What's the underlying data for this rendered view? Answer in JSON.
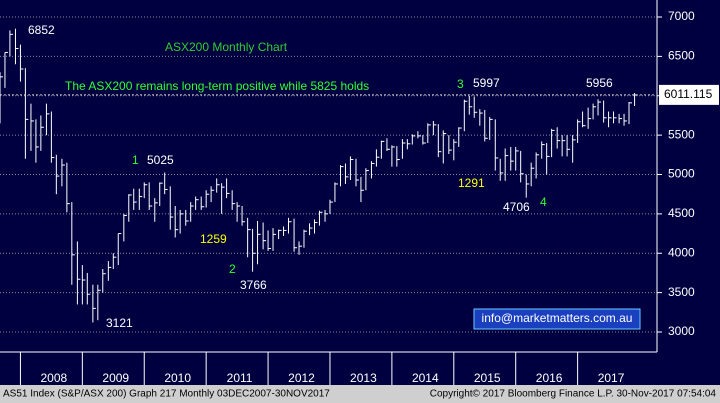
{
  "chart_data": {
    "type": "ohlc",
    "title": "ASX200 Monthly Chart",
    "subtitle": "The ASX200 remains long-term positive while 5825 holds",
    "x": [
      2007.54,
      2007.63,
      2007.71,
      2007.79,
      2007.88,
      2007.96,
      2008.04,
      2008.13,
      2008.21,
      2008.29,
      2008.38,
      2008.46,
      2008.54,
      2008.63,
      2008.71,
      2008.79,
      2008.88,
      2008.96,
      2009.04,
      2009.13,
      2009.21,
      2009.29,
      2009.38,
      2009.46,
      2009.54,
      2009.63,
      2009.71,
      2009.79,
      2009.88,
      2009.96,
      2010.04,
      2010.13,
      2010.21,
      2010.29,
      2010.38,
      2010.46,
      2010.54,
      2010.63,
      2010.71,
      2010.79,
      2010.88,
      2010.96,
      2011.04,
      2011.13,
      2011.21,
      2011.29,
      2011.38,
      2011.46,
      2011.54,
      2011.63,
      2011.71,
      2011.79,
      2011.88,
      2011.96,
      2012.04,
      2012.13,
      2012.21,
      2012.29,
      2012.38,
      2012.46,
      2012.54,
      2012.63,
      2012.71,
      2012.79,
      2012.88,
      2012.96,
      2013.04,
      2013.13,
      2013.21,
      2013.29,
      2013.38,
      2013.46,
      2013.54,
      2013.63,
      2013.71,
      2013.79,
      2013.88,
      2013.96,
      2014.04,
      2014.13,
      2014.21,
      2014.29,
      2014.38,
      2014.46,
      2014.54,
      2014.63,
      2014.71,
      2014.79,
      2014.88,
      2014.96,
      2015.04,
      2015.13,
      2015.21,
      2015.29,
      2015.38,
      2015.46,
      2015.54,
      2015.63,
      2015.71,
      2015.79,
      2015.88,
      2015.96,
      2016.04,
      2016.13,
      2016.21,
      2016.29,
      2016.38,
      2016.46,
      2016.54,
      2016.63,
      2016.71,
      2016.79,
      2016.88,
      2016.96,
      2017.04,
      2017.13,
      2017.21,
      2017.29,
      2017.38,
      2017.46,
      2017.54,
      2017.63,
      2017.71,
      2017.79,
      2017.88
    ],
    "high": [
      6350,
      6300,
      6550,
      6830,
      6852,
      6650,
      6350,
      5900,
      5700,
      5750,
      5900,
      5800,
      5250,
      5200,
      5150,
      4650,
      4150,
      3850,
      3750,
      3600,
      3600,
      3800,
      3900,
      4000,
      4250,
      4500,
      4750,
      4820,
      4820,
      4900,
      4900,
      4700,
      4900,
      5025,
      4850,
      4600,
      4550,
      4550,
      4650,
      4720,
      4720,
      4800,
      4850,
      4950,
      4890,
      4950,
      4800,
      4650,
      4600,
      4450,
      4310,
      4410,
      4390,
      4290,
      4320,
      4300,
      4340,
      4450,
      4440,
      4150,
      4300,
      4380,
      4430,
      4540,
      4550,
      4680,
      4900,
      5120,
      5140,
      5230,
      5200,
      4970,
      5080,
      5170,
      5320,
      5430,
      5460,
      5370,
      5360,
      5450,
      5450,
      5510,
      5550,
      5500,
      5650,
      5680,
      5640,
      5560,
      5500,
      5450,
      5600,
      5950,
      5997,
      5990,
      5830,
      5820,
      5730,
      5700,
      5200,
      5330,
      5350,
      5350,
      5300,
      5000,
      5150,
      5280,
      5420,
      5400,
      5580,
      5600,
      5500,
      5500,
      5500,
      5700,
      5800,
      5850,
      5900,
      5956,
      5940,
      5800,
      5800,
      5770,
      5770,
      5920,
      6035
    ],
    "low": [
      5950,
      5650,
      6100,
      6500,
      6400,
      6180,
      5200,
      5300,
      5150,
      5300,
      5500,
      5150,
      4750,
      4850,
      4520,
      3600,
      3350,
      3350,
      3350,
      3121,
      3150,
      3500,
      3650,
      3800,
      3850,
      4150,
      4400,
      4550,
      4550,
      4700,
      4550,
      4400,
      4600,
      4750,
      4300,
      4200,
      4250,
      4350,
      4400,
      4550,
      4550,
      4580,
      4650,
      4770,
      4500,
      4700,
      4550,
      4400,
      4350,
      3950,
      3766,
      3860,
      4050,
      4030,
      4030,
      4180,
      4220,
      4250,
      4020,
      3980,
      4070,
      4230,
      4250,
      4350,
      4400,
      4500,
      4650,
      4850,
      4880,
      4930,
      4850,
      4650,
      4800,
      4950,
      5100,
      5200,
      5300,
      5100,
      5100,
      5200,
      5320,
      5380,
      5460,
      5380,
      5400,
      5500,
      5220,
      5140,
      5260,
      5180,
      5350,
      5550,
      5760,
      5720,
      5620,
      5420,
      5440,
      5050,
      4920,
      4920,
      5050,
      5050,
      4900,
      4706,
      4850,
      4950,
      5200,
      5000,
      5220,
      5330,
      5230,
      5230,
      5150,
      5400,
      5600,
      5580,
      5700,
      5750,
      5660,
      5600,
      5650,
      5650,
      5620,
      5640,
      5870
    ],
    "close": [
      6150,
      6240,
      6550,
      6780,
      6600,
      6340,
      5700,
      5680,
      5350,
      5600,
      5770,
      5215,
      4980,
      5120,
      4630,
      3980,
      3670,
      3660,
      3480,
      3300,
      3530,
      3740,
      3820,
      3950,
      4250,
      4480,
      4740,
      4650,
      4720,
      4870,
      4600,
      4640,
      4890,
      4810,
      4460,
      4300,
      4500,
      4410,
      4600,
      4680,
      4590,
      4750,
      4800,
      4870,
      4840,
      4760,
      4630,
      4600,
      4400,
      4300,
      4000,
      4240,
      4160,
      4060,
      4240,
      4290,
      4290,
      4400,
      4070,
      4090,
      4280,
      4320,
      4390,
      4520,
      4500,
      4650,
      4880,
      5100,
      4970,
      5190,
      4930,
      4800,
      5050,
      5140,
      5220,
      5420,
      5320,
      5350,
      5190,
      5400,
      5390,
      5490,
      5490,
      5400,
      5630,
      5630,
      5290,
      5520,
      5310,
      5410,
      5590,
      5930,
      5860,
      5790,
      5780,
      5460,
      5700,
      5210,
      5020,
      5240,
      5170,
      5300,
      5010,
      4880,
      5080,
      5250,
      5380,
      5230,
      5560,
      5430,
      5430,
      5320,
      5440,
      5670,
      5620,
      5710,
      5860,
      5920,
      5720,
      5720,
      5720,
      5710,
      5680,
      5910,
      6010
    ],
    "color": "#ffffff",
    "xlim": [
      2007.63,
      2018.21
    ],
    "xticks": [
      {
        "value": 2008.5,
        "label": "2008"
      },
      {
        "value": 2009.5,
        "label": "2009"
      },
      {
        "value": 2010.5,
        "label": "2010"
      },
      {
        "value": 2011.5,
        "label": "2011"
      },
      {
        "value": 2012.5,
        "label": "2012"
      },
      {
        "value": 2013.5,
        "label": "2013"
      },
      {
        "value": 2014.5,
        "label": "2014"
      },
      {
        "value": 2015.5,
        "label": "2015"
      },
      {
        "value": 2016.5,
        "label": "2016"
      },
      {
        "value": 2017.5,
        "label": "2017"
      }
    ],
    "ylim": [
      2746,
      7216
    ],
    "yticks": [
      3000,
      3500,
      4000,
      4500,
      5000,
      5500,
      6000,
      6500,
      7000
    ],
    "grid": true,
    "last_price": 6011.115,
    "annotations": [
      "1",
      "2",
      "3",
      "4",
      "1259",
      "1291"
    ],
    "contact": "info@marketmatters.com.au",
    "footer_left": "AS51 Index (S&P/ASX 200) Graph 217  Monthly 03DEC2007-30NOV2017",
    "footer_right": "Copyright© 2017 Bloomberg Finance L.P.      30-Nov-2017 07:54:04"
  }
}
